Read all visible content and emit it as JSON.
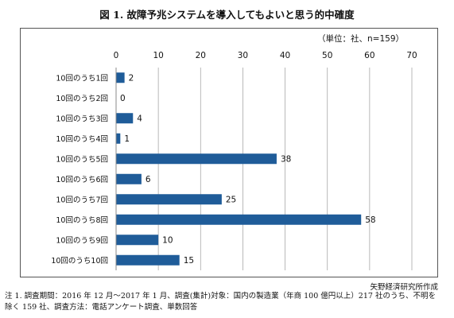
{
  "title": "図 1. 故障予兆システムを導入してもよいと思う的中確度",
  "unit_label": "（単位：社、n=159）",
  "source": "矢野経済研究所作成",
  "note_lines": [
    "注 1. 調査期間：2016 年 12 月～2017 年 1 月、調査(集計)対象：国内の製造業（年商 100 億円以上）217 社のうち、不明を",
    "除く 159 社、調査方法：電話アンケート調査、単数回答"
  ],
  "chart_data": {
    "type": "bar",
    "orientation": "horizontal",
    "categories": [
      "10回のうち1回",
      "10回のうち2回",
      "10回のうち3回",
      "10回のうち4回",
      "10回のうち5回",
      "10回のうち6回",
      "10回のうち7回",
      "10回のうち8回",
      "10回のうち9回",
      "10回のうち10回"
    ],
    "values": [
      2,
      0,
      4,
      1,
      38,
      6,
      25,
      58,
      10,
      15
    ],
    "xlim": [
      0,
      70
    ],
    "xticks": [
      0,
      10,
      20,
      30,
      40,
      50,
      60,
      70
    ],
    "xaxis_position": "top",
    "grid": true,
    "data_labels": true,
    "bar_color": "#1f5c99"
  }
}
